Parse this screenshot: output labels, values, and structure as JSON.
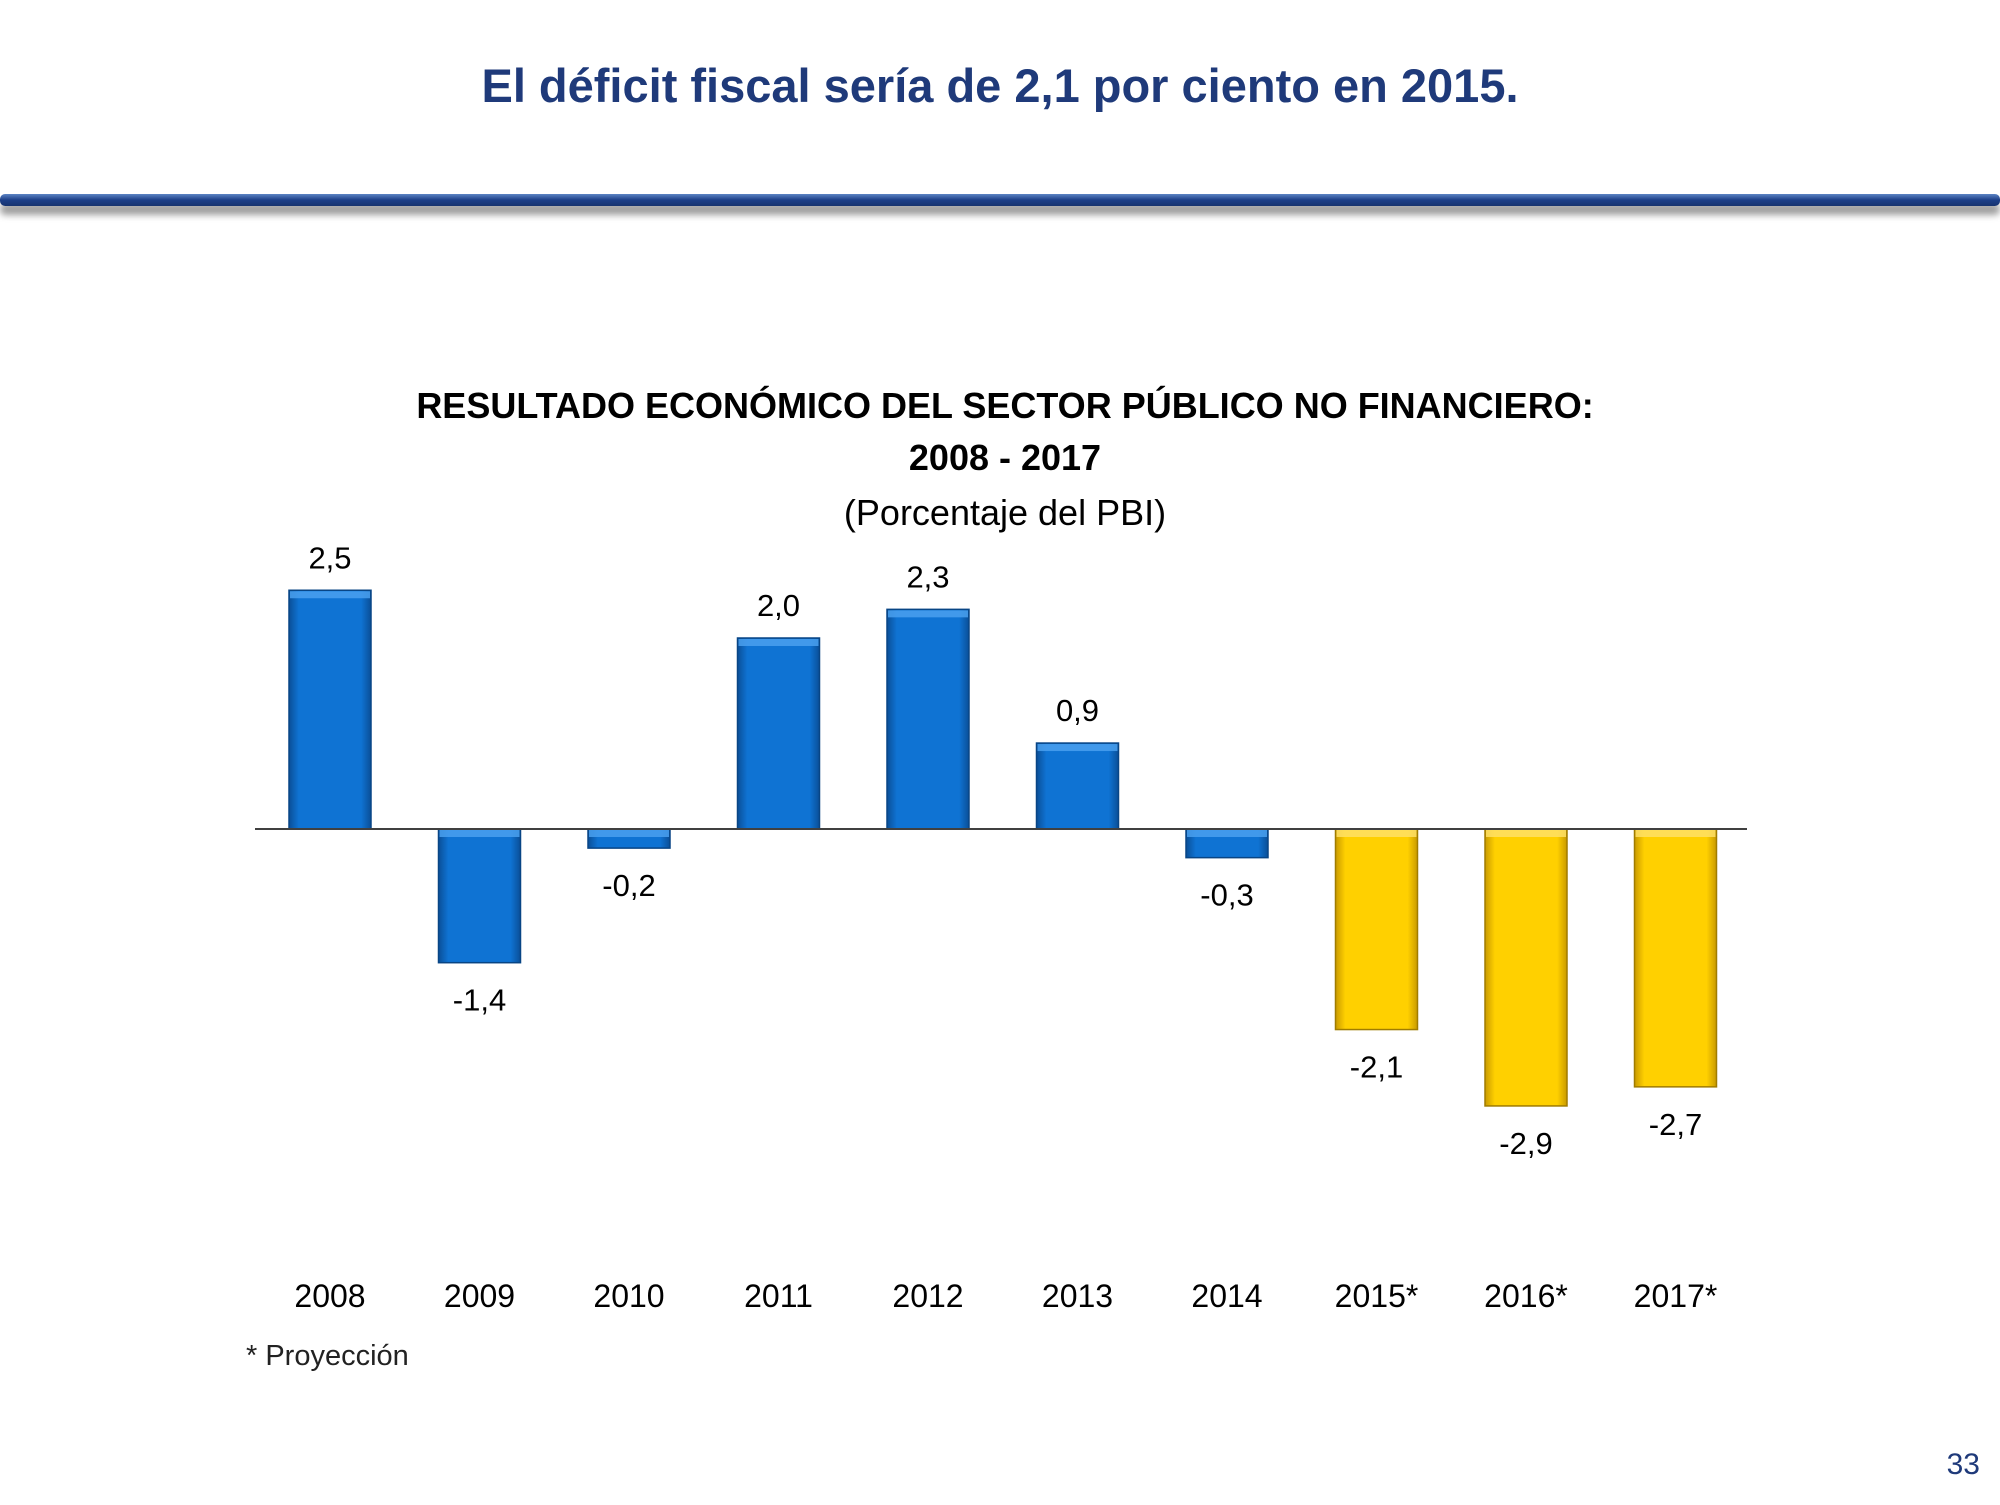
{
  "slide": {
    "title": "El déficit fiscal sería de 2,1 por ciento en 2015.",
    "footnote": "* Proyección",
    "page_number": "33"
  },
  "colors": {
    "title": "#1F3A7A",
    "actual_bar": "#0A6FCB",
    "projection_bar": "#FFCC00",
    "axis": "#404040",
    "text": "#000000"
  },
  "chart_data": {
    "type": "bar",
    "title": "RESULTADO ECONÓMICO DEL SECTOR PÚBLICO NO FINANCIERO:",
    "subtitle": "2008 - 2017",
    "unit_label": "(Porcentaje del PBI)",
    "categories": [
      "2008",
      "2009",
      "2010",
      "2011",
      "2012",
      "2013",
      "2014",
      "2015*",
      "2016*",
      "2017*"
    ],
    "values": [
      2.5,
      -1.4,
      -0.2,
      2.0,
      2.3,
      0.9,
      -0.3,
      -2.1,
      -2.9,
      -2.7
    ],
    "data_labels": [
      "2,5",
      "-1,4",
      "-0,2",
      "2,0",
      "2,3",
      "0,9",
      "-0,3",
      "-2,1",
      "-2,9",
      "-2,7"
    ],
    "projected": [
      false,
      false,
      false,
      false,
      false,
      false,
      false,
      true,
      true,
      true
    ],
    "xlabel": "",
    "ylabel": "",
    "ylim": [
      -3.5,
      2.5
    ],
    "grid": false,
    "legend": "none"
  }
}
